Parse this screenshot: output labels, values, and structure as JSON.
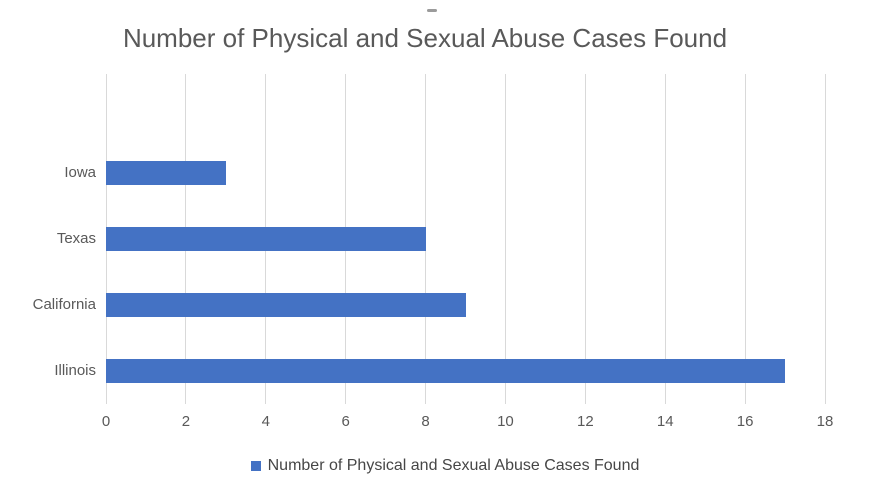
{
  "chart_data": {
    "type": "bar",
    "orientation": "horizontal",
    "title": "Number of Physical and Sexual Abuse Cases Found",
    "categories": [
      "Iowa",
      "Texas",
      "California",
      "Illinois"
    ],
    "values": [
      3,
      8,
      9,
      17
    ],
    "series": [
      {
        "name": "Number of Physical and Sexual Abuse Cases Found",
        "values": [
          3,
          8,
          9,
          17
        ]
      }
    ],
    "xlabel": "",
    "ylabel": "",
    "xlim": [
      0,
      18
    ],
    "x_ticks": [
      0,
      2,
      4,
      6,
      8,
      10,
      12,
      14,
      16,
      18
    ],
    "grid": true,
    "leading_empty_bands": 1,
    "legend": {
      "position": "bottom",
      "entries": [
        "Number of Physical and Sexual Abuse Cases Found"
      ]
    },
    "colors": {
      "bar": "#4472C4",
      "gridline": "#D9D9D9",
      "title_text": "#595959",
      "axis_text": "#595959",
      "legend_text": "#464646"
    }
  }
}
